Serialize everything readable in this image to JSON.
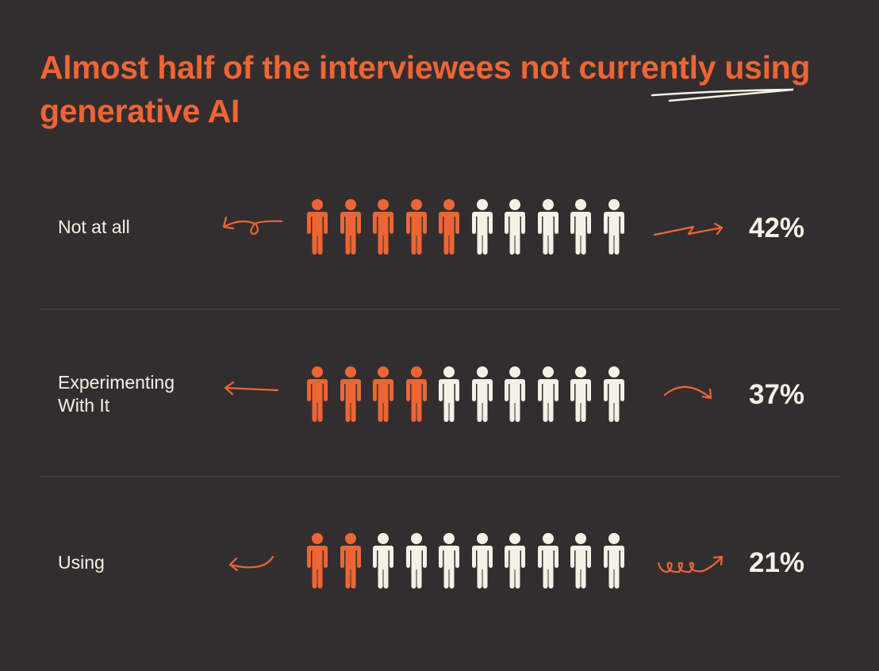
{
  "title": "Almost half of the interviewees not currently using generative AI",
  "colors": {
    "background": "#322e2f",
    "accent": "#ee6535",
    "neutral": "#f5f1e6"
  },
  "chart_data": {
    "type": "pictograph",
    "icon": "person-icon",
    "icons_per_row": 10,
    "categories": [
      "Not at all",
      "Experimenting With It",
      "Using"
    ],
    "values": [
      42,
      37,
      21
    ],
    "value_labels": [
      "42%",
      "37%",
      "21%"
    ],
    "icons_highlighted": [
      5,
      4,
      2
    ]
  }
}
